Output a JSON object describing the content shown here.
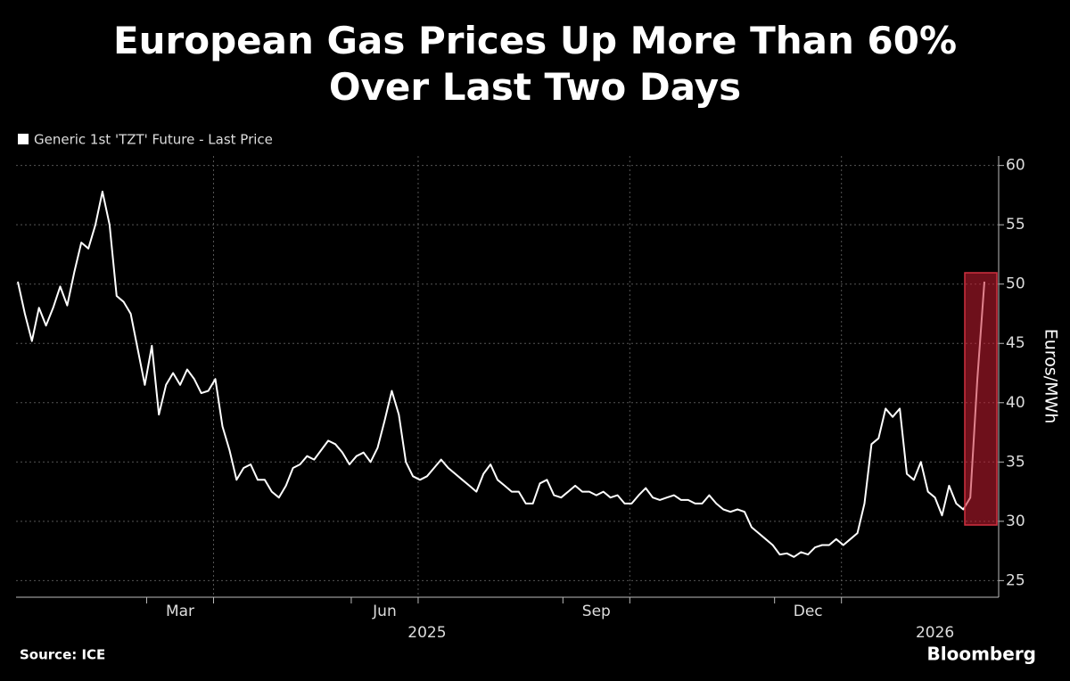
{
  "chart_data": {
    "type": "line",
    "title": "European Gas Prices Up More Than 60% Over Last Two Days",
    "y_axis_label": "Euros/MWh",
    "source": "Source: ICE",
    "brand": "Bloomberg",
    "categories": [
      null,
      null,
      null,
      null,
      null,
      null,
      null,
      null,
      null,
      null,
      null,
      null,
      null,
      null,
      null,
      null,
      null,
      null,
      null,
      null,
      null,
      null,
      null,
      "Mar",
      null,
      null,
      null,
      null,
      null,
      null,
      null,
      null,
      null,
      null,
      null,
      null,
      null,
      null,
      null,
      null,
      null,
      null,
      null,
      null,
      null,
      null,
      null,
      null,
      null,
      null,
      null,
      null,
      "Jun",
      null,
      null,
      null,
      null,
      null,
      null,
      null,
      null,
      null,
      null,
      null,
      null,
      null,
      null,
      null,
      null,
      null,
      null,
      null,
      null,
      null,
      null,
      null,
      null,
      null,
      null,
      null,
      null,
      null,
      "Sep",
      null,
      null,
      null,
      null,
      null,
      null,
      null,
      null,
      null,
      null,
      null,
      null,
      null,
      null,
      null,
      null,
      null,
      null,
      null,
      null,
      null,
      null,
      null,
      null,
      null,
      null,
      null,
      null,
      null,
      "Dec",
      null,
      null,
      null,
      null,
      null,
      null,
      null,
      null,
      null,
      null,
      null,
      null,
      null,
      null,
      null,
      null,
      null,
      null,
      null,
      null,
      null,
      null,
      null,
      null,
      null
    ],
    "year_labels": [
      null,
      null,
      null,
      null,
      null,
      null,
      null,
      null,
      null,
      null,
      null,
      null,
      null,
      null,
      null,
      null,
      null,
      null,
      null,
      null,
      null,
      null,
      null,
      null,
      null,
      null,
      null,
      null,
      null,
      null,
      null,
      null,
      null,
      null,
      null,
      null,
      null,
      null,
      null,
      null,
      null,
      null,
      null,
      null,
      null,
      null,
      null,
      null,
      null,
      null,
      null,
      null,
      null,
      null,
      null,
      null,
      null,
      null,
      "2025",
      null,
      null,
      null,
      null,
      null,
      null,
      null,
      null,
      null,
      null,
      null,
      null,
      null,
      null,
      null,
      null,
      null,
      null,
      null,
      null,
      null,
      null,
      null,
      null,
      null,
      null,
      null,
      null,
      null,
      null,
      null,
      null,
      null,
      null,
      null,
      null,
      null,
      null,
      null,
      null,
      null,
      null,
      null,
      null,
      null,
      null,
      null,
      null,
      null,
      null,
      null,
      null,
      null,
      null,
      null,
      null,
      null,
      null,
      null,
      null,
      null,
      null,
      null,
      null,
      null,
      null,
      null,
      null,
      null,
      null,
      null,
      "2026",
      null,
      null,
      null,
      null,
      null,
      null,
      null,
      null,
      null
    ],
    "series": [
      {
        "name": "Generic 1st 'TZT' Future - Last Price",
        "color": "#ffffff",
        "values": [
          50.2,
          47.5,
          45.2,
          48,
          46.5,
          48,
          49.8,
          48.2,
          51,
          53.5,
          53,
          55,
          57.8,
          55,
          49,
          48.5,
          47.5,
          44.5,
          41.5,
          44.8,
          39,
          41.5,
          42.5,
          41.5,
          42.8,
          42,
          40.8,
          41,
          42,
          38,
          36,
          33.5,
          34.5,
          34.8,
          33.5,
          33.5,
          32.5,
          32,
          33,
          34.5,
          34.8,
          35.5,
          35.2,
          36,
          36.8,
          36.5,
          35.8,
          34.8,
          35.5,
          35.8,
          35,
          36.2,
          38.5,
          41,
          39,
          35,
          33.8,
          33.5,
          33.8,
          34.5,
          35.2,
          34.5,
          34,
          33.5,
          33,
          32.5,
          34,
          34.8,
          33.5,
          33,
          32.5,
          32.5,
          31.5,
          31.5,
          33.2,
          33.5,
          32.2,
          32,
          32.5,
          33,
          32.5,
          32.5,
          32.2,
          32.5,
          32,
          32.2,
          31.5,
          31.5,
          32.2,
          32.8,
          32,
          31.8,
          32,
          32.2,
          31.8,
          31.8,
          31.5,
          31.5,
          32.2,
          31.5,
          31,
          30.8,
          31,
          30.8,
          29.5,
          29,
          28.5,
          28,
          27.2,
          27.3,
          27,
          27.4,
          27.2,
          27.8,
          28,
          28,
          28.5,
          28,
          28.5,
          29,
          31.5,
          36.5,
          37,
          39.5,
          38.8,
          39.5,
          34,
          33.5,
          35,
          32.5,
          32,
          30.5,
          33,
          31.5,
          31,
          32,
          42,
          50.2
        ]
      }
    ],
    "ylim": [
      23.6,
      60.8
    ],
    "yticks": [
      25,
      30,
      35,
      40,
      45,
      50,
      55,
      60
    ],
    "grid": true
  }
}
